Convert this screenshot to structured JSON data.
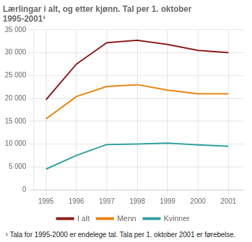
{
  "chart_data": {
    "type": "line",
    "title": "Lærlingar i alt, og etter kjønn. Tal per 1. oktober\n1995-2001¹",
    "footnote": "¹ Tala for 1995-2000 er endelege tal. Tala per 1. oktober 2001 er førebelse.",
    "x": [
      1995,
      1996,
      1997,
      1998,
      1999,
      2000,
      2001
    ],
    "series": [
      {
        "name": "I alt",
        "color": "#8B1A1A",
        "values": [
          19700,
          27500,
          32200,
          32700,
          31800,
          30500,
          30000
        ]
      },
      {
        "name": "Menn",
        "color": "#E8820A",
        "values": [
          15500,
          20400,
          22600,
          23000,
          21800,
          21000,
          21000
        ]
      },
      {
        "name": "Kvinner",
        "color": "#2E9E9E",
        "values": [
          4500,
          7500,
          9900,
          10000,
          10200,
          9800,
          9500
        ]
      }
    ],
    "xlim": [
      1994.6,
      2001.5
    ],
    "xticks": [
      1995,
      1996,
      1997,
      1998,
      1999,
      2000,
      2001
    ],
    "ylim": [
      0,
      35000
    ],
    "yticks": [
      0,
      {
        "value": 5000,
        "label": "5 000"
      },
      {
        "value": 10000,
        "label": "10 000"
      },
      {
        "value": 15000,
        "label": "15 000"
      },
      {
        "value": 20000,
        "label": "20 000"
      },
      {
        "value": 25000,
        "label": "25 000"
      },
      {
        "value": 30000,
        "label": "30 000"
      },
      {
        "value": 35000,
        "label": "35 000"
      }
    ],
    "grid": true,
    "legend": "bottom"
  }
}
